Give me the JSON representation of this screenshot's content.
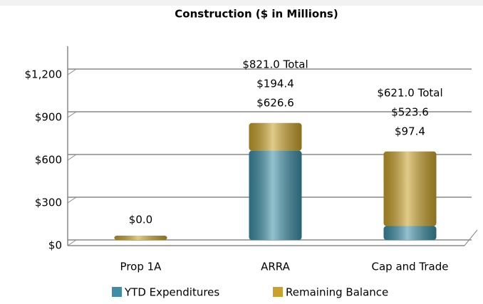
{
  "chart_data": {
    "type": "stacked-bar",
    "title": "Construction ($ in Millions)",
    "categories": [
      "Prop 1A",
      "ARRA",
      "Cap and Trade"
    ],
    "series": [
      {
        "name": "YTD Expenditures",
        "color": "#3d8ea6",
        "values": [
          0,
          626.6,
          97.4
        ],
        "value_labels": [
          "$0.0",
          "$626.6",
          "$97.4"
        ]
      },
      {
        "name": "Remaining Balance",
        "color": "#c9a12b",
        "values": [
          0,
          194.4,
          523.6
        ],
        "value_labels": [
          null,
          "$194.4",
          "$523.6"
        ]
      }
    ],
    "totals": [
      null,
      821.0,
      621.0
    ],
    "total_labels": [
      null,
      "$821.0 Total",
      "$621.0 Total"
    ],
    "ylim": [
      0,
      1400
    ],
    "yticks": [
      {
        "value": 0,
        "label": "$0"
      },
      {
        "value": 300,
        "label": "$300"
      },
      {
        "value": 600,
        "label": "$600"
      },
      {
        "value": 900,
        "label": "$900"
      },
      {
        "value": 1200,
        "label": "$1,200"
      }
    ],
    "grid": true,
    "legend": "bottom"
  }
}
